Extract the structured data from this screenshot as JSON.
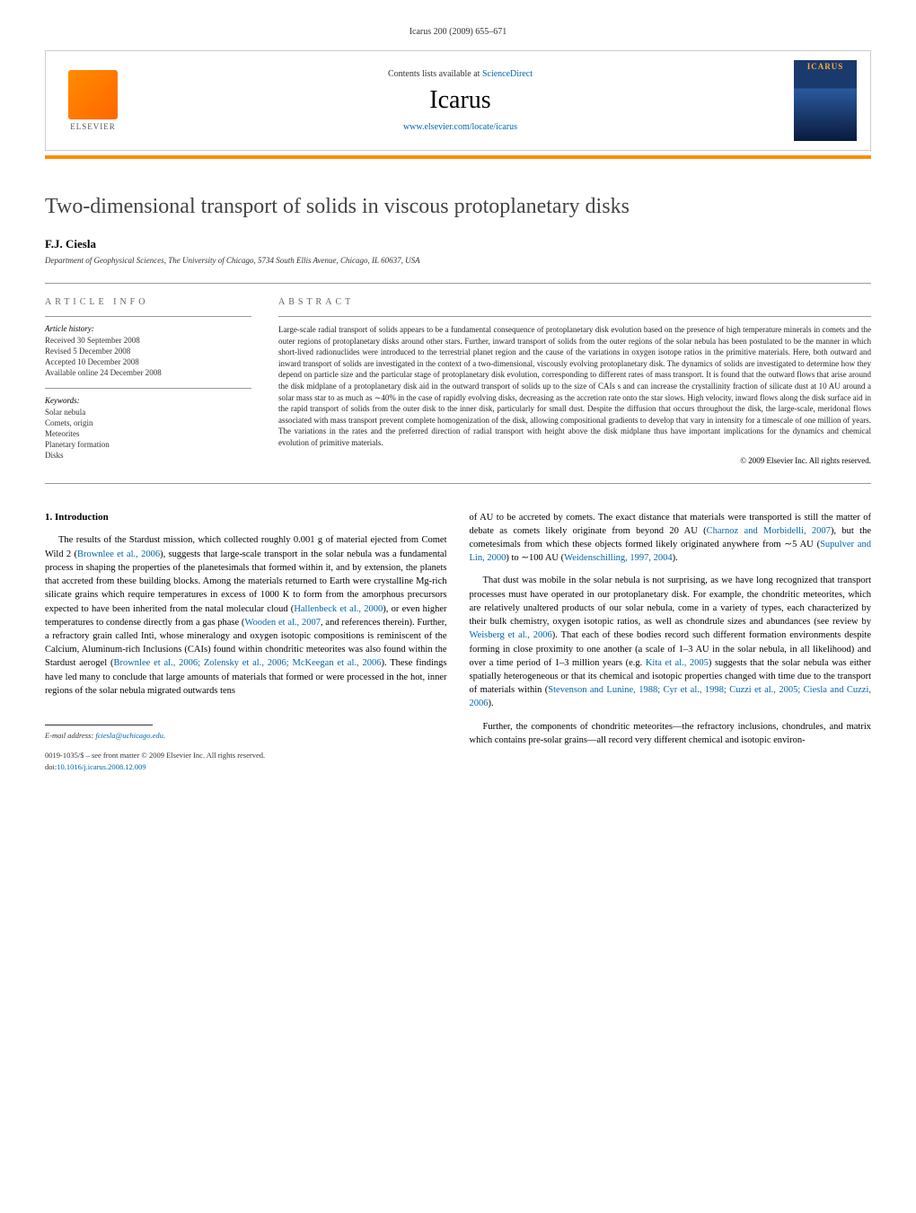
{
  "running_header": "Icarus 200 (2009) 655–671",
  "header": {
    "contents_prefix": "Contents lists available at ",
    "contents_link": "ScienceDirect",
    "journal": "Icarus",
    "url": "www.elsevier.com/locate/icarus",
    "publisher": "ELSEVIER",
    "cover_label": "ICARUS"
  },
  "title": "Two-dimensional transport of solids in viscous protoplanetary disks",
  "author": "F.J. Ciesla",
  "affiliation": "Department of Geophysical Sciences, The University of Chicago, 5734 South Ellis Avenue, Chicago, IL 60637, USA",
  "article_info": {
    "heading": "ARTICLE INFO",
    "history_label": "Article history:",
    "received": "Received 30 September 2008",
    "revised": "Revised 5 December 2008",
    "accepted": "Accepted 10 December 2008",
    "available": "Available online 24 December 2008",
    "keywords_label": "Keywords:",
    "keywords": [
      "Solar nebula",
      "Comets, origin",
      "Meteorites",
      "Planetary formation",
      "Disks"
    ]
  },
  "abstract": {
    "heading": "ABSTRACT",
    "text": "Large-scale radial transport of solids appears to be a fundamental consequence of protoplanetary disk evolution based on the presence of high temperature minerals in comets and the outer regions of protoplanetary disks around other stars. Further, inward transport of solids from the outer regions of the solar nebula has been postulated to be the manner in which short-lived radionuclides were introduced to the terrestrial planet region and the cause of the variations in oxygen isotope ratios in the primitive materials. Here, both outward and inward transport of solids are investigated in the context of a two-dimensional, viscously evolving protoplanetary disk. The dynamics of solids are investigated to determine how they depend on particle size and the particular stage of protoplanetary disk evolution, corresponding to different rates of mass transport. It is found that the outward flows that arise around the disk midplane of a protoplanetary disk aid in the outward transport of solids up to the size of CAIs s and can increase the crystallinity fraction of silicate dust at 10 AU around a solar mass star to as much as ∼40% in the case of rapidly evolving disks, decreasing as the accretion rate onto the star slows. High velocity, inward flows along the disk surface aid in the rapid transport of solids from the outer disk to the inner disk, particularly for small dust. Despite the diffusion that occurs throughout the disk, the large-scale, meridonal flows associated with mass transport prevent complete homogenization of the disk, allowing compositional gradients to develop that vary in intensity for a timescale of one million of years. The variations in the rates and the preferred direction of radial transport with height above the disk midplane thus have important implications for the dynamics and chemical evolution of primitive materials.",
    "copyright": "© 2009 Elsevier Inc. All rights reserved."
  },
  "section1": {
    "heading": "1. Introduction",
    "para1_a": "The results of the Stardust mission, which collected roughly 0.001 g of material ejected from Comet Wild 2 (",
    "para1_cite1": "Brownlee et al., 2006",
    "para1_b": "), suggests that large-scale transport in the solar nebula was a fundamental process in shaping the properties of the planetesimals that formed within it, and by extension, the planets that accreted from these building blocks. Among the materials returned to Earth were crystalline Mg-rich silicate grains which require temperatures in excess of 1000 K to form from the amorphous precursors expected to have been inherited from the natal molecular cloud (",
    "para1_cite2": "Hallenbeck et al., 2000",
    "para1_c": "), or even higher temperatures to condense directly from a gas phase (",
    "para1_cite3": "Wooden et al., 2007",
    "para1_d": ", and references therein). Further, a refractory grain called Inti, whose mineralogy and oxygen isotopic compositions is reminiscent of the Calcium, Aluminum-rich Inclusions (CAIs) found within chondritic meteorites was also found within the Stardust aerogel (",
    "para1_cite4": "Brownlee et al., 2006; Zolensky et al., 2006; McKeegan et al., 2006",
    "para1_e": "). These findings have led many to conclude that large amounts of materials that formed or were processed in the hot, inner regions of the solar nebula migrated outwards tens",
    "col2_para1_a": "of AU to be accreted by comets. The exact distance that materials were transported is still the matter of debate as comets likely originate from beyond 20 AU (",
    "col2_para1_cite1": "Charnoz and Morbidelli, 2007",
    "col2_para1_b": "), but the cometesimals from which these objects formed likely originated anywhere from ∼5 AU (",
    "col2_para1_cite2": "Supulver and Lin, 2000",
    "col2_para1_c": ") to ∼100 AU (",
    "col2_para1_cite3": "Weidenschilling, 1997, 2004",
    "col2_para1_d": ").",
    "col2_para2_a": "That dust was mobile in the solar nebula is not surprising, as we have long recognized that transport processes must have operated in our protoplanetary disk. For example, the chondritic meteorites, which are relatively unaltered products of our solar nebula, come in a variety of types, each characterized by their bulk chemistry, oxygen isotopic ratios, as well as chondrule sizes and abundances (see review by ",
    "col2_para2_cite1": "Weisberg et al., 2006",
    "col2_para2_b": "). That each of these bodies record such different formation environments despite forming in close proximity to one another (a scale of 1–3 AU in the solar nebula, in all likelihood) and over a time period of 1–3 million years (e.g. ",
    "col2_para2_cite2": "Kita et al., 2005",
    "col2_para2_c": ") suggests that the solar nebula was either spatially heterogeneous or that its chemical and isotopic properties changed with time due to the transport of materials within (",
    "col2_para2_cite3": "Stevenson and Lunine, 1988; Cyr et al., 1998; Cuzzi et al., 2005; Ciesla and Cuzzi, 2006",
    "col2_para2_d": ").",
    "col2_para3": "Further, the components of chondritic meteorites—the refractory inclusions, chondrules, and matrix which contains pre-solar grains—all record very different chemical and isotopic environ-"
  },
  "footer": {
    "email_label": "E-mail address: ",
    "email": "fciesla@uchicago.edu",
    "issn": "0019-1035/$ – see front matter  © 2009 Elsevier Inc. All rights reserved.",
    "doi_label": "doi:",
    "doi": "10.1016/j.icarus.2008.12.009"
  },
  "colors": {
    "link": "#0066aa",
    "orange": "#ff8c00",
    "text": "#000000",
    "grey": "#666666"
  }
}
